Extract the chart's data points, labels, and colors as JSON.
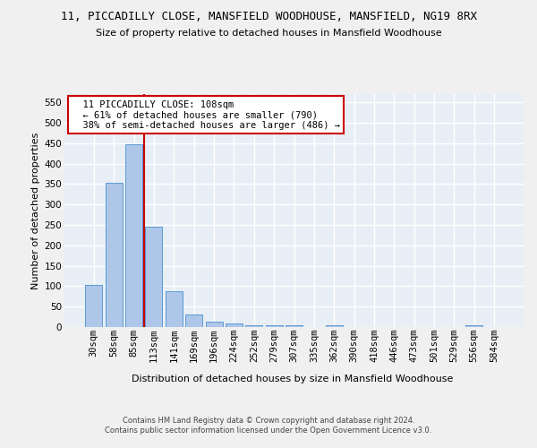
{
  "title": "11, PICCADILLY CLOSE, MANSFIELD WOODHOUSE, MANSFIELD, NG19 8RX",
  "subtitle": "Size of property relative to detached houses in Mansfield Woodhouse",
  "xlabel": "Distribution of detached houses by size in Mansfield Woodhouse",
  "ylabel": "Number of detached properties",
  "footer_line1": "Contains HM Land Registry data © Crown copyright and database right 2024.",
  "footer_line2": "Contains public sector information licensed under the Open Government Licence v3.0.",
  "annotation_line1": "  11 PICCADILLY CLOSE: 108sqm",
  "annotation_line2": "  ← 61% of detached houses are smaller (790)",
  "annotation_line3": "  38% of semi-detached houses are larger (486) →",
  "bar_categories": [
    "30sqm",
    "58sqm",
    "85sqm",
    "113sqm",
    "141sqm",
    "169sqm",
    "196sqm",
    "224sqm",
    "252sqm",
    "279sqm",
    "307sqm",
    "335sqm",
    "362sqm",
    "390sqm",
    "418sqm",
    "446sqm",
    "473sqm",
    "501sqm",
    "529sqm",
    "556sqm",
    "584sqm"
  ],
  "bar_values": [
    103,
    353,
    448,
    245,
    88,
    30,
    14,
    9,
    5,
    5,
    5,
    0,
    5,
    0,
    0,
    0,
    0,
    0,
    0,
    5,
    0
  ],
  "bar_color": "#aec6e8",
  "bar_edge_color": "#5b9bd5",
  "vline_x_idx": 2.5,
  "vline_color": "#cc0000",
  "bg_color": "#e8eef5",
  "grid_color": "#ffffff",
  "ylim_max": 570,
  "yticks": [
    0,
    50,
    100,
    150,
    200,
    250,
    300,
    350,
    400,
    450,
    500,
    550
  ],
  "title_fontsize": 9,
  "subtitle_fontsize": 8,
  "ylabel_fontsize": 8,
  "xlabel_fontsize": 8,
  "tick_fontsize": 7.5,
  "footer_fontsize": 6,
  "annotation_fontsize": 7.5,
  "fig_bg": "#f0f0f0"
}
